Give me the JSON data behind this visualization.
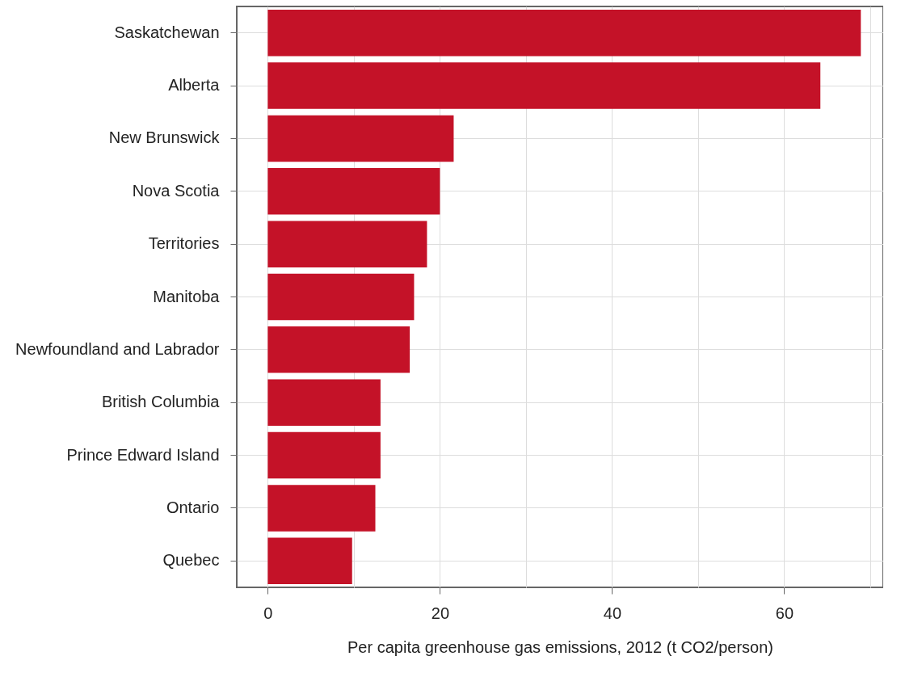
{
  "chart_data": {
    "type": "bar",
    "orientation": "horizontal",
    "xlabel": "Per capita greenhouse gas emissions, 2012 (t CO2/person)",
    "categories": [
      "Saskatchewan",
      "Alberta",
      "New Brunswick",
      "Nova Scotia",
      "Territories",
      "Manitoba",
      "Newfoundland and Labrador",
      "British Columbia",
      "Prince Edward Island",
      "Ontario",
      "Quebec"
    ],
    "values": [
      68.9,
      64.2,
      21.6,
      20.0,
      18.5,
      17.0,
      16.5,
      13.1,
      13.1,
      12.5,
      9.8
    ],
    "color": "#c41228",
    "xlim": [
      -3.6,
      71.5
    ],
    "xticks": [
      0,
      {
        "value": 10,
        "label": null
      },
      20,
      {
        "value": 30,
        "label": null
      },
      40,
      {
        "value": 50,
        "label": null
      },
      60,
      {
        "value": 70,
        "label": null
      }
    ],
    "grid": true
  }
}
